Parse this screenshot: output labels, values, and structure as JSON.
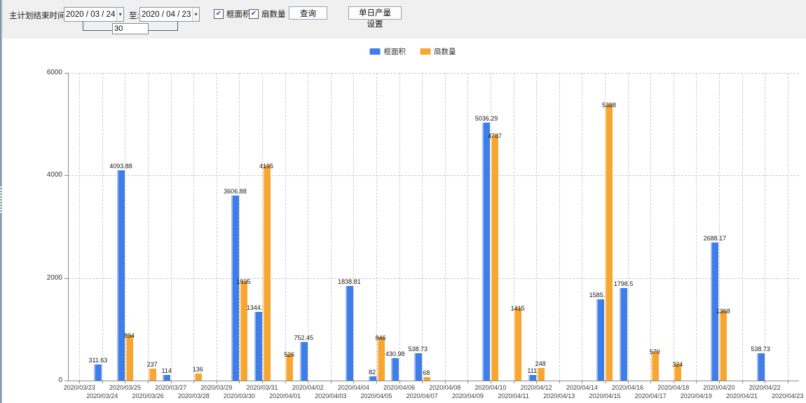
{
  "toolbar": {
    "date_label": "主计划结束时间:",
    "start_date": "2020 / 03 / 24",
    "to_label": "至:",
    "end_date": "2020 / 04 / 23",
    "days_value": "30",
    "checkbox_area_label": "框面积",
    "checkbox_fans_label": "扇数量",
    "query_button": "查询",
    "daily_output_button": "单日产量设置",
    "dropdown_glyph": "▾",
    "check_glyph": "✔"
  },
  "colors": {
    "blue": "#3f7ee8",
    "orange": "#f7a632"
  },
  "legend": [
    {
      "label": "框面积",
      "color": "#3f7ee8"
    },
    {
      "label": "扇数量",
      "color": "#f7a632"
    }
  ],
  "chart_data": {
    "type": "bar",
    "title": "",
    "xlabel": "",
    "ylabel": "",
    "ylim": [
      0,
      6000
    ],
    "yticks": [
      0,
      2000,
      4000,
      6000
    ],
    "grid": true,
    "legend_position": "top",
    "categories": [
      "2020/03/23",
      "2020/03/24",
      "2020/03/25",
      "2020/03/26",
      "2020/03/27",
      "2020/03/28",
      "2020/03/29",
      "2020/03/30",
      "2020/03/31",
      "2020/04/01",
      "2020/04/02",
      "2020/04/03",
      "2020/04/04",
      "2020/04/05",
      "2020/04/06",
      "2020/04/07",
      "2020/04/08",
      "2020/04/09",
      "2020/04/10",
      "2020/04/11",
      "2020/04/12",
      "2020/04/13",
      "2020/04/14",
      "2020/04/15",
      "2020/04/16",
      "2020/04/17",
      "2020/04/18",
      "2020/04/19",
      "2020/04/20",
      "2020/04/21",
      "2020/04/22",
      "2020/04/23"
    ],
    "series": [
      {
        "name": "框面积",
        "color": "#3f7ee8",
        "values": [
          null,
          311.63,
          4093.88,
          null,
          114,
          null,
          null,
          3606.88,
          1344.95,
          null,
          752.45,
          null,
          1838.81,
          82,
          430.98,
          538.73,
          null,
          null,
          5036.29,
          null,
          111,
          null,
          null,
          1585.96,
          1798.5,
          null,
          null,
          null,
          2688.17,
          null,
          538.73,
          null
        ]
      },
      {
        "name": "扇数量",
        "color": "#f7a632",
        "values": [
          null,
          null,
          894,
          237,
          null,
          136,
          null,
          1935,
          4195,
          526,
          null,
          null,
          null,
          846,
          null,
          68,
          null,
          null,
          4787,
          1415,
          248,
          null,
          null,
          5388,
          null,
          570,
          324,
          null,
          1368,
          null,
          null,
          null
        ]
      }
    ]
  }
}
